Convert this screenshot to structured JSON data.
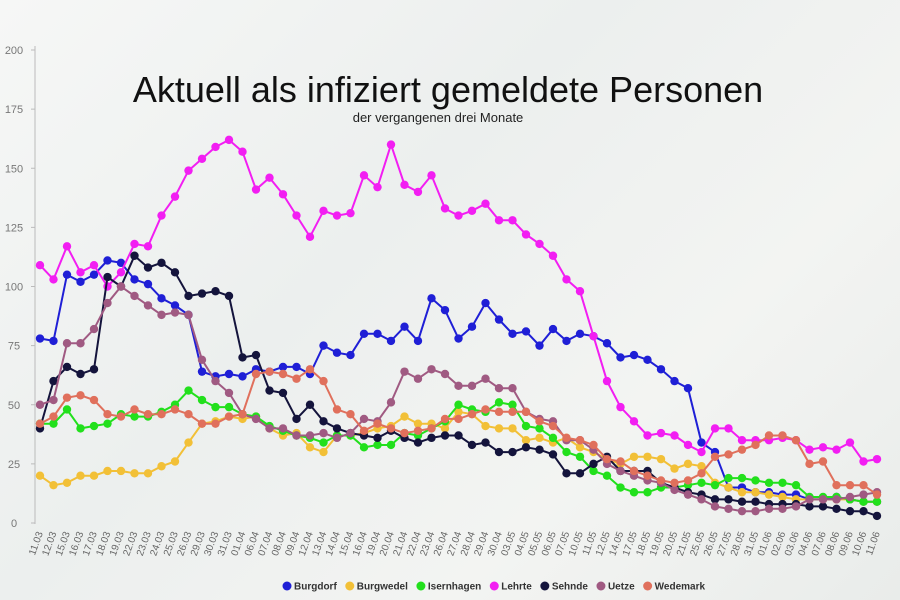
{
  "chart_data": {
    "type": "line",
    "title": "Aktuell als infiziert gemeldete Personen",
    "subtitle": "der vergangenen drei Monate",
    "categories": [
      "11.03",
      "12.03",
      "15.03",
      "16.03",
      "17.03",
      "18.03",
      "19.03",
      "22.03",
      "23.03",
      "24.03",
      "25.03",
      "26.03",
      "29.03",
      "30.03",
      "31.03",
      "01.04",
      "06.04",
      "07.04",
      "08.04",
      "09.04",
      "12.04",
      "13.04",
      "14.04",
      "15.04",
      "16.04",
      "19.04",
      "20.04",
      "21.04",
      "22.04",
      "23.04",
      "26.04",
      "27.04",
      "28.04",
      "29.04",
      "30.04",
      "03.05",
      "04.05",
      "05.05",
      "06.05",
      "07.05",
      "10.05",
      "11.05",
      "12.05",
      "14.05",
      "17.05",
      "18.05",
      "19.05",
      "20.05",
      "21.05",
      "25.05",
      "26.05",
      "27.05",
      "28.05",
      "31.05",
      "01.06",
      "02.06",
      "03.06",
      "04.06",
      "07.06",
      "08.06",
      "09.06",
      "10.06",
      "11.06"
    ],
    "series": [
      {
        "name": "Burgdorf",
        "color": "#1f1fd6",
        "values": [
          78,
          77,
          105,
          102,
          105,
          111,
          110,
          103,
          101,
          95,
          92,
          88,
          64,
          62,
          63,
          62,
          65,
          64,
          66,
          66,
          63,
          75,
          72,
          71,
          80,
          80,
          77,
          83,
          77,
          95,
          90,
          78,
          83,
          93,
          86,
          80,
          81,
          75,
          82,
          77,
          80,
          79,
          76,
          70,
          71,
          69,
          65,
          60,
          57,
          34,
          30,
          15,
          15,
          13,
          13,
          12,
          12,
          10,
          10,
          11,
          10,
          9,
          9
        ]
      },
      {
        "name": "Burgwedel",
        "color": "#f2c037",
        "values": [
          20,
          16,
          17,
          20,
          20,
          22,
          22,
          21,
          21,
          24,
          26,
          34,
          42,
          43,
          45,
          44,
          45,
          40,
          37,
          38,
          32,
          30,
          37,
          37,
          38,
          40,
          41,
          45,
          42,
          42,
          40,
          47,
          46,
          41,
          40,
          40,
          35,
          36,
          34,
          36,
          32,
          30,
          27,
          25,
          28,
          28,
          27,
          23,
          25,
          24,
          17,
          15,
          13,
          13,
          12,
          11,
          10,
          10,
          10,
          10,
          10,
          9,
          9
        ]
      },
      {
        "name": "Isernhagen",
        "color": "#22e01c",
        "values": [
          42,
          42,
          48,
          40,
          41,
          42,
          46,
          45,
          45,
          47,
          50,
          56,
          52,
          49,
          49,
          46,
          45,
          41,
          39,
          37,
          36,
          34,
          37,
          37,
          32,
          33,
          33,
          38,
          37,
          40,
          43,
          50,
          48,
          47,
          51,
          50,
          41,
          40,
          36,
          30,
          28,
          22,
          20,
          15,
          13,
          13,
          15,
          15,
          16,
          17,
          16,
          19,
          19,
          18,
          17,
          17,
          16,
          11,
          11,
          11,
          10,
          9,
          9
        ]
      },
      {
        "name": "Lehrte",
        "color": "#f21ef2",
        "values": [
          109,
          103,
          117,
          106,
          109,
          100,
          106,
          118,
          117,
          130,
          138,
          149,
          154,
          159,
          162,
          157,
          141,
          146,
          139,
          130,
          121,
          132,
          130,
          131,
          147,
          142,
          160,
          143,
          140,
          147,
          133,
          130,
          132,
          135,
          128,
          128,
          122,
          118,
          113,
          103,
          98,
          79,
          60,
          49,
          43,
          37,
          38,
          37,
          33,
          30,
          40,
          40,
          35,
          35,
          35,
          36,
          35,
          31,
          32,
          31,
          34,
          26,
          27
        ]
      },
      {
        "name": "Sehnde",
        "color": "#14143c",
        "values": [
          40,
          60,
          66,
          63,
          65,
          104,
          100,
          113,
          108,
          110,
          106,
          96,
          97,
          98,
          96,
          70,
          71,
          56,
          55,
          44,
          50,
          43,
          40,
          38,
          37,
          36,
          39,
          36,
          34,
          36,
          37,
          37,
          33,
          34,
          30,
          30,
          32,
          31,
          29,
          21,
          21,
          25,
          28,
          22,
          22,
          22,
          17,
          15,
          13,
          12,
          10,
          10,
          9,
          9,
          8,
          8,
          8,
          7,
          7,
          6,
          5,
          5,
          3
        ]
      },
      {
        "name": "Uetze",
        "color": "#a05a82",
        "values": [
          50,
          52,
          76,
          76,
          82,
          93,
          100,
          96,
          92,
          88,
          89,
          88,
          69,
          60,
          55,
          46,
          44,
          40,
          40,
          37,
          37,
          38,
          36,
          38,
          44,
          43,
          51,
          64,
          61,
          65,
          63,
          58,
          58,
          61,
          57,
          57,
          47,
          44,
          43,
          35,
          35,
          31,
          25,
          22,
          20,
          18,
          17,
          14,
          12,
          10,
          7,
          6,
          5,
          5,
          6,
          6,
          7,
          10,
          10,
          10,
          11,
          12,
          13
        ]
      },
      {
        "name": "Wedemark",
        "color": "#e0705c",
        "values": [
          42,
          45,
          53,
          54,
          52,
          46,
          45,
          48,
          46,
          46,
          48,
          46,
          42,
          42,
          45,
          46,
          63,
          64,
          63,
          61,
          65,
          60,
          48,
          46,
          39,
          42,
          40,
          38,
          39,
          40,
          44,
          44,
          46,
          48,
          47,
          47,
          47,
          43,
          41,
          36,
          35,
          33,
          27,
          26,
          22,
          20,
          18,
          17,
          18,
          21,
          28,
          29,
          31,
          33,
          37,
          37,
          35,
          25,
          26,
          16,
          16,
          16,
          12
        ]
      }
    ],
    "ylim": [
      0,
      200
    ],
    "yticks": [
      0,
      25,
      50,
      75,
      100,
      125,
      150,
      175,
      200
    ],
    "grid": false
  }
}
